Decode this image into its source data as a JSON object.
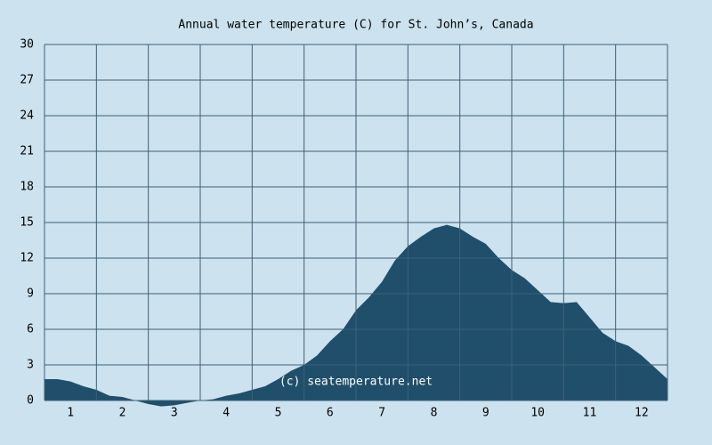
{
  "chart_data": {
    "type": "area",
    "title": "Annual water temperature (C) for St. John’s, Canada",
    "annotation": "(c) seatemperature.net",
    "x": [
      0.5,
      0.75,
      1.0,
      1.25,
      1.5,
      1.75,
      2.0,
      2.25,
      2.5,
      2.75,
      3.0,
      3.25,
      3.5,
      3.75,
      4.0,
      4.25,
      4.5,
      4.75,
      5.0,
      5.25,
      5.5,
      5.75,
      6.0,
      6.25,
      6.5,
      6.75,
      7.0,
      7.25,
      7.5,
      7.75,
      8.0,
      8.25,
      8.5,
      8.75,
      9.0,
      9.25,
      9.5,
      9.75,
      10.0,
      10.25,
      10.5,
      10.75,
      11.0,
      11.25,
      11.5,
      11.75,
      12.0,
      12.25,
      12.5
    ],
    "values": [
      1.8,
      1.8,
      1.6,
      1.2,
      0.9,
      0.4,
      0.3,
      0.0,
      -0.3,
      -0.5,
      -0.4,
      -0.2,
      0.0,
      0.1,
      0.4,
      0.6,
      0.9,
      1.2,
      1.8,
      2.5,
      3.0,
      3.8,
      5.0,
      6.0,
      7.6,
      8.7,
      10.0,
      11.8,
      13.0,
      13.8,
      14.5,
      14.8,
      14.5,
      13.8,
      13.2,
      12.0,
      11.0,
      10.3,
      9.3,
      8.3,
      8.2,
      8.3,
      7.0,
      5.7,
      5.0,
      4.6,
      3.8,
      2.8,
      1.8
    ],
    "color": "#1f4f6a",
    "xlim": [
      0.5,
      12.5
    ],
    "xticks": [
      1,
      2,
      3,
      4,
      5,
      6,
      7,
      8,
      9,
      10,
      11,
      12
    ],
    "ylim": [
      0,
      30
    ],
    "yticks": [
      0,
      3,
      6,
      9,
      12,
      15,
      18,
      21,
      24,
      27,
      30
    ],
    "grid": true
  }
}
